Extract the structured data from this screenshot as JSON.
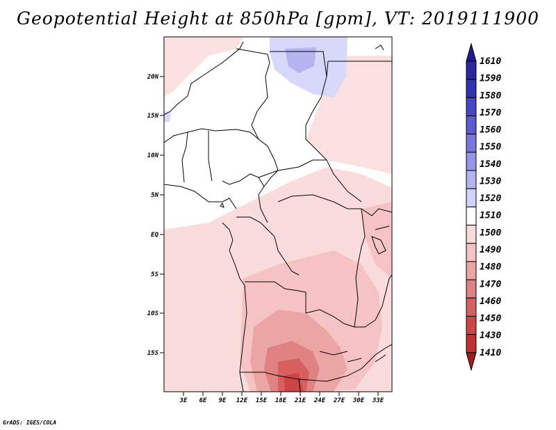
{
  "title": "Geopotential Height at 850hPa [gpm], VT: 2019111900",
  "footer": "GrADS: IGES/COLA",
  "map": {
    "lat_ticks": [
      "20N",
      "15N",
      "10N",
      "5N",
      "EQ",
      "5S",
      "10S",
      "15S"
    ],
    "lon_ticks": [
      "3E",
      "6E",
      "9E",
      "12E",
      "15E",
      "18E",
      "21E",
      "24E",
      "27E",
      "30E",
      "33E"
    ]
  },
  "colorbar": {
    "levels": [
      "1610",
      "1590",
      "1580",
      "1570",
      "1560",
      "1550",
      "1540",
      "1530",
      "1520",
      "1510",
      "1500",
      "1490",
      "1480",
      "1470",
      "1460",
      "1450",
      "1430",
      "1410"
    ],
    "colors": [
      "#1e1e8c",
      "#2828a0",
      "#3232b4",
      "#4646c8",
      "#5a5ad2",
      "#7878dc",
      "#9696e6",
      "#b4b4f0",
      "#d2d2fa",
      "#ffffff",
      "#fadcdc",
      "#f5c3c3",
      "#eba5a5",
      "#e18282",
      "#d75f5f",
      "#cd4646",
      "#be3232",
      "#a01e1e"
    ]
  }
}
